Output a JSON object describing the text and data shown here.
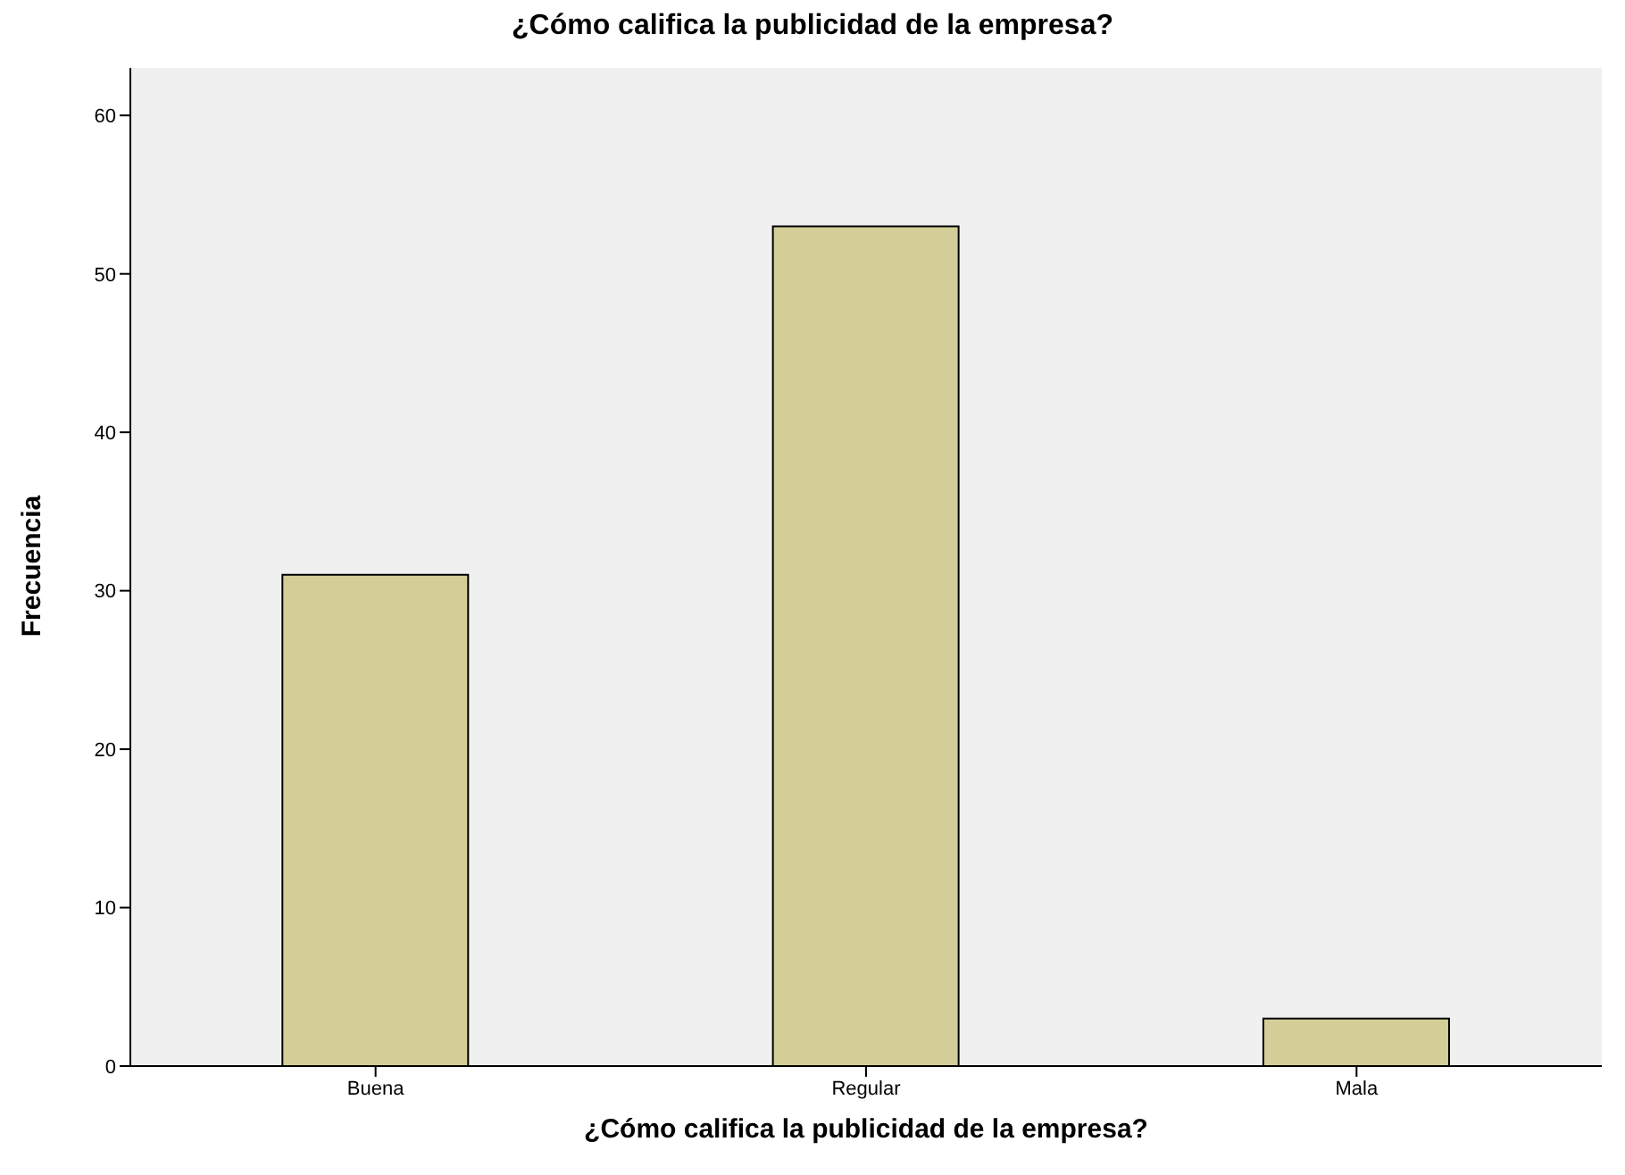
{
  "chart_data": {
    "type": "bar",
    "title": "¿Cómo califica la publicidad de la empresa?",
    "xlabel": "¿Cómo califica la publicidad de la empresa?",
    "ylabel": "Frecuencia",
    "categories": [
      "Buena",
      "Regular",
      "Mala"
    ],
    "values": [
      31,
      53,
      3
    ],
    "color": "#d3ce97",
    "ylim": [
      0,
      63
    ],
    "yticks": [
      0,
      10,
      20,
      30,
      40,
      50,
      60
    ],
    "grid": false
  }
}
